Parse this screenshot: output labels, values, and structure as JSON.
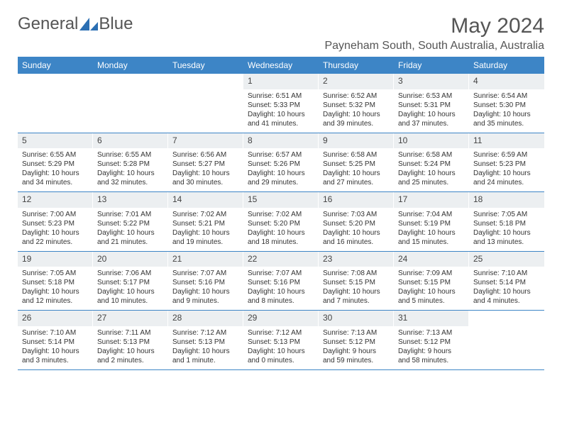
{
  "brand": {
    "name1": "General",
    "name2": "Blue"
  },
  "title": "May 2024",
  "location": "Payneham South, South Australia, Australia",
  "colors": {
    "header_bg": "#3d85c6",
    "daynum_bg": "#eceff1",
    "text": "#333333",
    "title_color": "#555555"
  },
  "day_names": [
    "Sunday",
    "Monday",
    "Tuesday",
    "Wednesday",
    "Thursday",
    "Friday",
    "Saturday"
  ],
  "weeks": [
    [
      {
        "day": "",
        "sunrise": "",
        "sunset": "",
        "daylight": ""
      },
      {
        "day": "",
        "sunrise": "",
        "sunset": "",
        "daylight": ""
      },
      {
        "day": "",
        "sunrise": "",
        "sunset": "",
        "daylight": ""
      },
      {
        "day": "1",
        "sunrise": "Sunrise: 6:51 AM",
        "sunset": "Sunset: 5:33 PM",
        "daylight": "Daylight: 10 hours and 41 minutes."
      },
      {
        "day": "2",
        "sunrise": "Sunrise: 6:52 AM",
        "sunset": "Sunset: 5:32 PM",
        "daylight": "Daylight: 10 hours and 39 minutes."
      },
      {
        "day": "3",
        "sunrise": "Sunrise: 6:53 AM",
        "sunset": "Sunset: 5:31 PM",
        "daylight": "Daylight: 10 hours and 37 minutes."
      },
      {
        "day": "4",
        "sunrise": "Sunrise: 6:54 AM",
        "sunset": "Sunset: 5:30 PM",
        "daylight": "Daylight: 10 hours and 35 minutes."
      }
    ],
    [
      {
        "day": "5",
        "sunrise": "Sunrise: 6:55 AM",
        "sunset": "Sunset: 5:29 PM",
        "daylight": "Daylight: 10 hours and 34 minutes."
      },
      {
        "day": "6",
        "sunrise": "Sunrise: 6:55 AM",
        "sunset": "Sunset: 5:28 PM",
        "daylight": "Daylight: 10 hours and 32 minutes."
      },
      {
        "day": "7",
        "sunrise": "Sunrise: 6:56 AM",
        "sunset": "Sunset: 5:27 PM",
        "daylight": "Daylight: 10 hours and 30 minutes."
      },
      {
        "day": "8",
        "sunrise": "Sunrise: 6:57 AM",
        "sunset": "Sunset: 5:26 PM",
        "daylight": "Daylight: 10 hours and 29 minutes."
      },
      {
        "day": "9",
        "sunrise": "Sunrise: 6:58 AM",
        "sunset": "Sunset: 5:25 PM",
        "daylight": "Daylight: 10 hours and 27 minutes."
      },
      {
        "day": "10",
        "sunrise": "Sunrise: 6:58 AM",
        "sunset": "Sunset: 5:24 PM",
        "daylight": "Daylight: 10 hours and 25 minutes."
      },
      {
        "day": "11",
        "sunrise": "Sunrise: 6:59 AM",
        "sunset": "Sunset: 5:23 PM",
        "daylight": "Daylight: 10 hours and 24 minutes."
      }
    ],
    [
      {
        "day": "12",
        "sunrise": "Sunrise: 7:00 AM",
        "sunset": "Sunset: 5:23 PM",
        "daylight": "Daylight: 10 hours and 22 minutes."
      },
      {
        "day": "13",
        "sunrise": "Sunrise: 7:01 AM",
        "sunset": "Sunset: 5:22 PM",
        "daylight": "Daylight: 10 hours and 21 minutes."
      },
      {
        "day": "14",
        "sunrise": "Sunrise: 7:02 AM",
        "sunset": "Sunset: 5:21 PM",
        "daylight": "Daylight: 10 hours and 19 minutes."
      },
      {
        "day": "15",
        "sunrise": "Sunrise: 7:02 AM",
        "sunset": "Sunset: 5:20 PM",
        "daylight": "Daylight: 10 hours and 18 minutes."
      },
      {
        "day": "16",
        "sunrise": "Sunrise: 7:03 AM",
        "sunset": "Sunset: 5:20 PM",
        "daylight": "Daylight: 10 hours and 16 minutes."
      },
      {
        "day": "17",
        "sunrise": "Sunrise: 7:04 AM",
        "sunset": "Sunset: 5:19 PM",
        "daylight": "Daylight: 10 hours and 15 minutes."
      },
      {
        "day": "18",
        "sunrise": "Sunrise: 7:05 AM",
        "sunset": "Sunset: 5:18 PM",
        "daylight": "Daylight: 10 hours and 13 minutes."
      }
    ],
    [
      {
        "day": "19",
        "sunrise": "Sunrise: 7:05 AM",
        "sunset": "Sunset: 5:18 PM",
        "daylight": "Daylight: 10 hours and 12 minutes."
      },
      {
        "day": "20",
        "sunrise": "Sunrise: 7:06 AM",
        "sunset": "Sunset: 5:17 PM",
        "daylight": "Daylight: 10 hours and 10 minutes."
      },
      {
        "day": "21",
        "sunrise": "Sunrise: 7:07 AM",
        "sunset": "Sunset: 5:16 PM",
        "daylight": "Daylight: 10 hours and 9 minutes."
      },
      {
        "day": "22",
        "sunrise": "Sunrise: 7:07 AM",
        "sunset": "Sunset: 5:16 PM",
        "daylight": "Daylight: 10 hours and 8 minutes."
      },
      {
        "day": "23",
        "sunrise": "Sunrise: 7:08 AM",
        "sunset": "Sunset: 5:15 PM",
        "daylight": "Daylight: 10 hours and 7 minutes."
      },
      {
        "day": "24",
        "sunrise": "Sunrise: 7:09 AM",
        "sunset": "Sunset: 5:15 PM",
        "daylight": "Daylight: 10 hours and 5 minutes."
      },
      {
        "day": "25",
        "sunrise": "Sunrise: 7:10 AM",
        "sunset": "Sunset: 5:14 PM",
        "daylight": "Daylight: 10 hours and 4 minutes."
      }
    ],
    [
      {
        "day": "26",
        "sunrise": "Sunrise: 7:10 AM",
        "sunset": "Sunset: 5:14 PM",
        "daylight": "Daylight: 10 hours and 3 minutes."
      },
      {
        "day": "27",
        "sunrise": "Sunrise: 7:11 AM",
        "sunset": "Sunset: 5:13 PM",
        "daylight": "Daylight: 10 hours and 2 minutes."
      },
      {
        "day": "28",
        "sunrise": "Sunrise: 7:12 AM",
        "sunset": "Sunset: 5:13 PM",
        "daylight": "Daylight: 10 hours and 1 minute."
      },
      {
        "day": "29",
        "sunrise": "Sunrise: 7:12 AM",
        "sunset": "Sunset: 5:13 PM",
        "daylight": "Daylight: 10 hours and 0 minutes."
      },
      {
        "day": "30",
        "sunrise": "Sunrise: 7:13 AM",
        "sunset": "Sunset: 5:12 PM",
        "daylight": "Daylight: 9 hours and 59 minutes."
      },
      {
        "day": "31",
        "sunrise": "Sunrise: 7:13 AM",
        "sunset": "Sunset: 5:12 PM",
        "daylight": "Daylight: 9 hours and 58 minutes."
      },
      {
        "day": "",
        "sunrise": "",
        "sunset": "",
        "daylight": ""
      }
    ]
  ]
}
